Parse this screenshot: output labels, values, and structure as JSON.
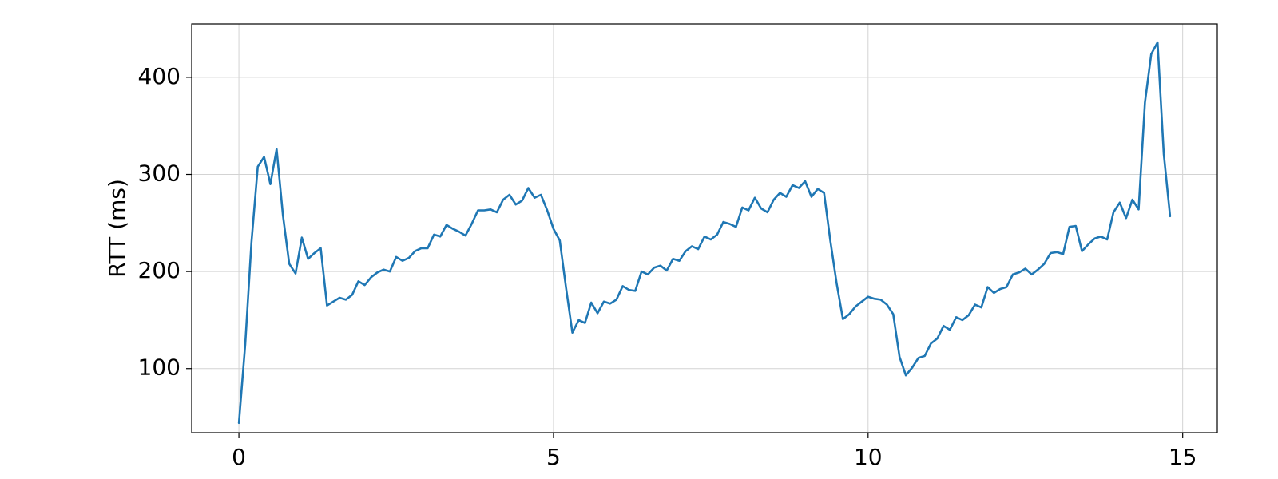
{
  "chart_data": {
    "type": "line",
    "title": "",
    "xlabel": "",
    "ylabel": "RTT (ms)",
    "xlim": [
      -0.75,
      15.55
    ],
    "ylim": [
      34,
      455
    ],
    "xticks": [
      0,
      5,
      10,
      15
    ],
    "yticks": [
      100,
      200,
      300,
      400
    ],
    "grid": true,
    "legend": "none",
    "line_color": "#1f77b4",
    "series": [
      {
        "x": [
          0,
          0.1,
          0.2,
          0.3,
          0.4,
          0.5,
          0.6,
          0.7,
          0.8,
          0.9,
          1.0,
          1.1,
          1.2,
          1.3,
          1.4,
          1.5,
          1.6,
          1.7,
          1.8,
          1.9,
          2.0,
          2.1,
          2.2,
          2.3,
          2.4,
          2.5,
          2.6,
          2.7,
          2.8,
          2.9,
          3.0,
          3.1,
          3.2,
          3.3,
          3.4,
          3.5,
          3.6,
          3.7,
          3.8,
          3.9,
          4.0,
          4.1,
          4.2,
          4.3,
          4.4,
          4.5,
          4.6,
          4.7,
          4.8,
          4.9,
          5.0,
          5.1,
          5.2,
          5.3,
          5.4,
          5.5,
          5.6,
          5.7,
          5.8,
          5.9,
          6.0,
          6.1,
          6.2,
          6.3,
          6.4,
          6.5,
          6.6,
          6.7,
          6.8,
          6.9,
          7.0,
          7.1,
          7.2,
          7.3,
          7.4,
          7.5,
          7.6,
          7.7,
          7.8,
          7.9,
          8.0,
          8.1,
          8.2,
          8.3,
          8.4,
          8.5,
          8.6,
          8.7,
          8.8,
          8.9,
          9.0,
          9.1,
          9.2,
          9.3,
          9.4,
          9.5,
          9.6,
          9.7,
          9.8,
          9.9,
          10.0,
          10.1,
          10.2,
          10.3,
          10.4,
          10.5,
          10.6,
          10.7,
          10.8,
          10.9,
          11.0,
          11.1,
          11.2,
          11.3,
          11.4,
          11.5,
          11.6,
          11.7,
          11.8,
          11.9,
          12.0,
          12.1,
          12.2,
          12.3,
          12.4,
          12.5,
          12.6,
          12.7,
          12.8,
          12.9,
          13.0,
          13.1,
          13.2,
          13.3,
          13.4,
          13.5,
          13.6,
          13.7,
          13.8,
          13.9,
          14.0,
          14.1,
          14.2,
          14.3,
          14.4,
          14.5,
          14.6,
          14.7,
          14.8
        ],
        "y": [
          44,
          125,
          230,
          308,
          318,
          290,
          326,
          258,
          208,
          198,
          235,
          213,
          219,
          224,
          165,
          169,
          173,
          171,
          176,
          190,
          186,
          194,
          199,
          202,
          200,
          215,
          211,
          214,
          221,
          224,
          224,
          238,
          236,
          248,
          244,
          241,
          237,
          249,
          263,
          263,
          264,
          261,
          274,
          279,
          269,
          273,
          286,
          276,
          279,
          263,
          244,
          232,
          183,
          137,
          150,
          147,
          168,
          157,
          169,
          167,
          171,
          185,
          181,
          180,
          200,
          197,
          204,
          206,
          201,
          213,
          211,
          221,
          226,
          223,
          236,
          233,
          238,
          251,
          249,
          246,
          266,
          263,
          276,
          265,
          261,
          274,
          281,
          277,
          289,
          286,
          293,
          277,
          285,
          281,
          232,
          188,
          151,
          156,
          164,
          169,
          174,
          172,
          171,
          166,
          156,
          112,
          93,
          101,
          111,
          113,
          126,
          131,
          144,
          140,
          153,
          150,
          155,
          166,
          163,
          184,
          178,
          182,
          184,
          197,
          199,
          203,
          197,
          202,
          208,
          219,
          220,
          218,
          246,
          247,
          221,
          228,
          234,
          236,
          233,
          261,
          271,
          255,
          274,
          264,
          374,
          424,
          436,
          321,
          257
        ]
      }
    ]
  }
}
